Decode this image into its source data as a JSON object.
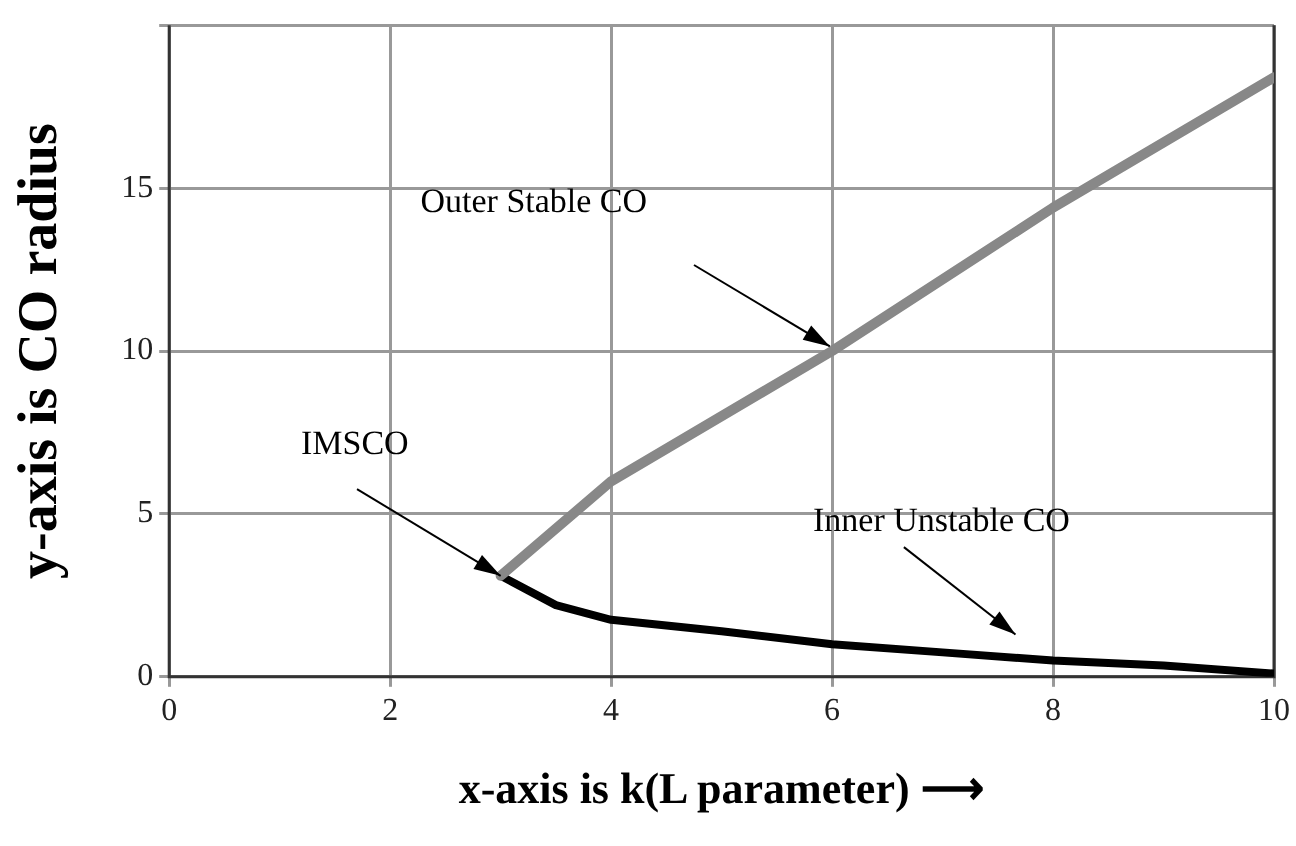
{
  "chart_data": {
    "type": "line",
    "xlabel": "x-axis is k(L parameter) ⟶",
    "ylabel": "y-axis is CO radius",
    "xlim": [
      0,
      10
    ],
    "xticks": [
      0,
      2,
      4,
      6,
      8,
      10
    ],
    "ylim": [
      0,
      20
    ],
    "yticks": [
      {
        "value": 0,
        "label": "0"
      },
      {
        "value": 5,
        "label": "5"
      },
      10,
      15,
      {
        "value": 20,
        "label": null
      }
    ],
    "grid": true,
    "legend": false,
    "marker": "none",
    "line_style": "solid",
    "series": [
      {
        "color": "#888888",
        "x": [
          3,
          4,
          6,
          8,
          10
        ],
        "values": [
          3.1,
          6.0,
          10.0,
          14.4,
          18.4
        ]
      },
      {
        "color": "#000000",
        "x": [
          3,
          3.5,
          4,
          5,
          6,
          7,
          8,
          9,
          10
        ],
        "values": [
          3.1,
          2.2,
          1.75,
          1.4,
          1.0,
          0.75,
          0.5,
          0.35,
          0.1
        ]
      }
    ],
    "annotations": [
      "Outer Stable CO",
      {
        "text": "IMSCO",
        "x": 3,
        "y": 3.1
      },
      "Inner Unstable CO"
    ]
  }
}
